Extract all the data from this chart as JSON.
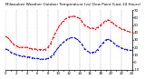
{
  "title": "Milwaukee Weather Outdoor Temperature (vs) Dew Point (Last 24 Hours)",
  "line1_color": "#FF0000",
  "line2_color": "#0000FF",
  "background_color": "#ffffff",
  "grid_color": "#888888",
  "ylim": [
    -10,
    70
  ],
  "xlim": [
    0,
    24
  ],
  "yticks": [
    -10,
    0,
    10,
    20,
    30,
    40,
    50,
    60,
    70
  ],
  "temp_x": [
    0,
    0.5,
    1,
    1.5,
    2,
    2.5,
    3,
    3.5,
    4,
    4.5,
    5,
    5.5,
    6,
    6.5,
    7,
    7.5,
    8,
    8.5,
    9,
    9.5,
    10,
    10.5,
    11,
    11.5,
    12,
    12.5,
    13,
    13.5,
    14,
    14.5,
    15,
    15.5,
    16,
    16.5,
    17,
    17.5,
    18,
    18.5,
    19,
    19.5,
    20,
    20.5,
    21,
    21.5,
    22,
    22.5,
    23,
    23.5,
    24
  ],
  "temp_y": [
    35,
    32,
    28,
    24,
    22,
    20,
    20,
    20,
    20,
    19,
    18,
    18,
    17,
    17,
    17,
    17,
    20,
    25,
    33,
    40,
    47,
    52,
    56,
    59,
    61,
    62,
    62,
    61,
    59,
    55,
    50,
    48,
    46,
    46,
    45,
    47,
    50,
    53,
    56,
    57,
    55,
    52,
    49,
    47,
    45,
    44,
    42,
    41,
    40
  ],
  "dew_x": [
    0,
    0.5,
    1,
    1.5,
    2,
    2.5,
    3,
    3.5,
    4,
    4.5,
    5,
    5.5,
    6,
    6.5,
    7,
    7.5,
    8,
    8.5,
    9,
    9.5,
    10,
    10.5,
    11,
    11.5,
    12,
    12.5,
    13,
    13.5,
    14,
    14.5,
    15,
    15.5,
    16,
    16.5,
    17,
    17.5,
    18,
    18.5,
    19,
    19.5,
    20,
    20.5,
    21,
    21.5,
    22,
    22.5,
    23,
    23.5,
    24
  ],
  "dew_y": [
    18,
    16,
    13,
    12,
    10,
    9,
    8,
    8,
    7,
    7,
    6,
    5,
    5,
    4,
    4,
    4,
    5,
    7,
    10,
    15,
    20,
    24,
    27,
    30,
    32,
    33,
    33,
    31,
    28,
    24,
    18,
    15,
    13,
    13,
    14,
    17,
    22,
    26,
    30,
    31,
    29,
    26,
    23,
    21,
    19,
    18,
    17,
    16,
    16
  ],
  "title_fontsize": 3.0,
  "tick_fontsize": 2.8,
  "linewidth": 0.7,
  "markersize": 1.0,
  "grid_xticks": [
    0,
    2,
    4,
    6,
    8,
    10,
    12,
    14,
    16,
    18,
    20,
    22,
    24
  ]
}
